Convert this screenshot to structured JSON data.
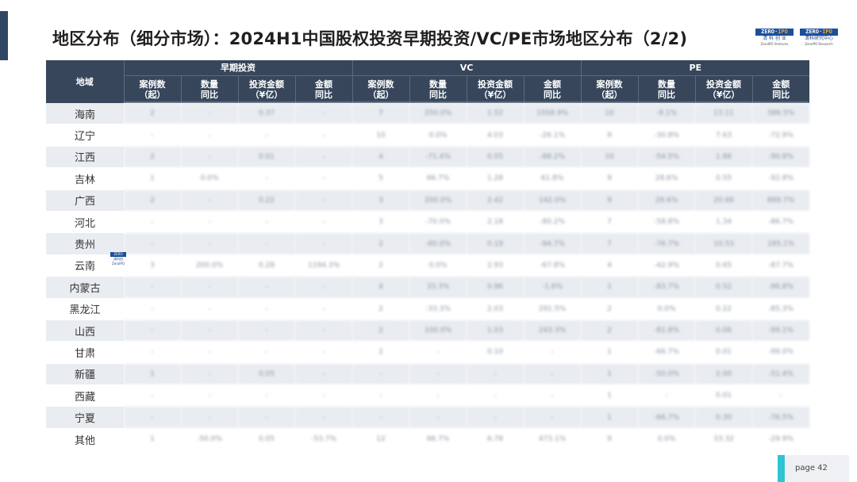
{
  "title": "地区分布（细分市场）：2024H1中国股权投资早期投资/VC/PE市场地区分布（2/2)",
  "logos": [
    {
      "brand_left": "ZERO",
      "brand_right": "IPO",
      "cn": "清 科 创 业",
      "en": "ZeroIPO Ventures"
    },
    {
      "brand_left": "ZERO",
      "brand_right": "IPO",
      "cn": "清科研究中心",
      "en": "ZeroIPO Research"
    }
  ],
  "table": {
    "region_header": "地域",
    "groups": [
      "早期投资",
      "VC",
      "PE"
    ],
    "sub_headers": [
      "案例数\n（起）",
      "数量\n同比",
      "投资金额\n（¥亿）",
      "金额\n同比"
    ],
    "rows": [
      {
        "region": "海南",
        "values": [
          "2",
          "-",
          "0.37",
          "-",
          "7",
          "250.0%",
          "1.52",
          "1558.9%",
          "10",
          "-9.1%",
          "13.11",
          "386.5%"
        ]
      },
      {
        "region": "辽宁",
        "values": [
          "-",
          "-",
          "-",
          "-",
          "10",
          "0.0%",
          "4.03",
          "-26.1%",
          "9",
          "-30.8%",
          "7.63",
          "-72.9%"
        ]
      },
      {
        "region": "江西",
        "values": [
          "2",
          "-",
          "0.01",
          "-",
          "4",
          "-71.4%",
          "0.55",
          "-88.2%",
          "10",
          "-54.5%",
          "1.86",
          "-90.8%"
        ]
      },
      {
        "region": "吉林",
        "values": [
          "1",
          "0.0%",
          "-",
          "-",
          "5",
          "66.7%",
          "1.28",
          "61.8%",
          "9",
          "28.6%",
          "0.55",
          "-92.8%"
        ]
      },
      {
        "region": "广西",
        "values": [
          "2",
          "-",
          "0.22",
          "-",
          "3",
          "200.0%",
          "2.42",
          "142.0%",
          "9",
          "28.6%",
          "20.68",
          "889.7%"
        ]
      },
      {
        "region": "河北",
        "values": [
          "-",
          "-",
          "-",
          "-",
          "3",
          "-70.0%",
          "2.18",
          "-80.2%",
          "7",
          "-58.8%",
          "1.34",
          "-86.7%"
        ]
      },
      {
        "region": "贵州",
        "values": [
          "-",
          "-",
          "-",
          "-",
          "2",
          "-60.0%",
          "0.19",
          "-94.7%",
          "7",
          "-76.7%",
          "10.53",
          "185.1%"
        ]
      },
      {
        "region": "云南",
        "values": [
          "3",
          "200.0%",
          "0.28",
          "1194.3%",
          "2",
          "0.0%",
          "2.93",
          "-67.8%",
          "4",
          "-42.9%",
          "0.65",
          "-87.7%"
        ]
      },
      {
        "region": "内蒙古",
        "values": [
          "-",
          "-",
          "-",
          "-",
          "4",
          "33.3%",
          "0.96",
          "-1.6%",
          "1",
          "-83.7%",
          "0.52",
          "-96.8%"
        ]
      },
      {
        "region": "黑龙江",
        "values": [
          "-",
          "-",
          "-",
          "-",
          "2",
          "-33.3%",
          "2.03",
          "291.5%",
          "2",
          "0.0%",
          "0.22",
          "-85.3%"
        ]
      },
      {
        "region": "山西",
        "values": [
          "-",
          "-",
          "-",
          "-",
          "2",
          "100.0%",
          "1.03",
          "243.3%",
          "2",
          "-81.8%",
          "0.06",
          "-99.1%"
        ]
      },
      {
        "region": "甘肃",
        "values": [
          "-",
          "-",
          "-",
          "-",
          "2",
          "-",
          "0.10",
          "-",
          "1",
          "-66.7%",
          "0.01",
          "-99.0%"
        ]
      },
      {
        "region": "新疆",
        "values": [
          "1",
          "-",
          "0.05",
          "-",
          "-",
          "-",
          "-",
          "-",
          "1",
          "-50.0%",
          "2.00",
          "-51.4%"
        ]
      },
      {
        "region": "西藏",
        "values": [
          "-",
          "-",
          "-",
          "-",
          "-",
          "-",
          "-",
          "-",
          "1",
          "-",
          "0.01",
          "-"
        ]
      },
      {
        "region": "宁夏",
        "values": [
          "-",
          "-",
          "-",
          "-",
          "-",
          "-",
          "-",
          "-",
          "1",
          "-66.7%",
          "0.30",
          "-76.5%"
        ]
      },
      {
        "region": "其他",
        "values": [
          "1",
          "-50.0%",
          "0.05",
          "-53.7%",
          "12",
          "66.7%",
          "6.78",
          "473.1%",
          "9",
          "0.0%",
          "33.32",
          "-29.9%"
        ]
      }
    ]
  },
  "mini_logo": {
    "brand": "ZERO",
    "cn": "清科创",
    "en": "ZeroIPO"
  },
  "footer": {
    "page_label": "page 42"
  },
  "colors": {
    "header_bg": "#37465b",
    "stripe": "#e9ecf0",
    "accent": "#2ec4d3",
    "title_bar": "#2f4763"
  }
}
